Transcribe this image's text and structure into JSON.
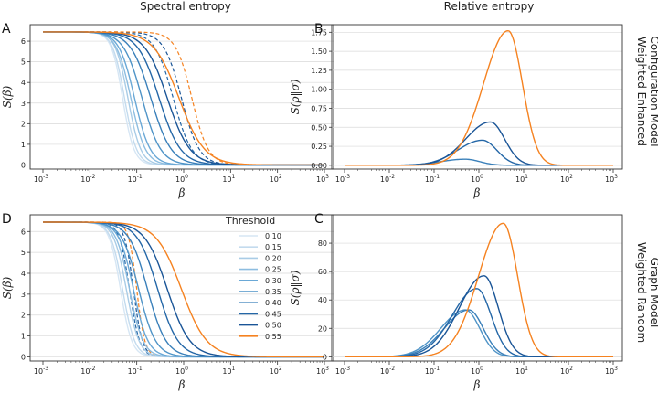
{
  "figure": {
    "column_titles": [
      "Spectral entropy",
      "Relative entropy"
    ],
    "row_labels": [
      [
        "Weighted Enhanced",
        "Configuration Model"
      ],
      [
        "Weighted Random",
        "Graph Model"
      ]
    ]
  },
  "legend": {
    "title": "Threshold",
    "items": [
      "0.10",
      "0.15",
      "0.20",
      "0.25",
      "0.30",
      "0.35",
      "0.40",
      "0.45",
      "0.50",
      "0.55"
    ]
  },
  "colors": {
    "series": [
      "#d6e6f4",
      "#c3dbee",
      "#a9cce6",
      "#8dbde0",
      "#6aa8d6",
      "#4f94c7",
      "#3a80ba",
      "#2467a7",
      "#1a5597",
      "#f58220"
    ],
    "grid": "#d9d9d9",
    "axis": "#333333"
  },
  "chart_data": [
    {
      "panel": "A",
      "type": "line",
      "title": "Spectral entropy",
      "xlabel": "β",
      "ylabel": "S(β)",
      "xscale": "log",
      "xlim": [
        0.001,
        1000
      ],
      "ylim": [
        -0.2,
        6.8
      ],
      "xticks": [
        "10",
        "10",
        "10",
        "10",
        "10",
        "10",
        "10"
      ],
      "xtick_exponents": [
        "-3",
        "-2",
        "-1",
        "0",
        "1",
        "2",
        "3"
      ],
      "yticks": [
        "0",
        "1",
        "2",
        "3",
        "4",
        "5",
        "6"
      ],
      "max_value": 6.45,
      "series": [
        {
          "name": "0.10",
          "midpoint_beta": 0.05,
          "slope": 3.6
        },
        {
          "name": "0.15",
          "midpoint_beta": 0.055,
          "slope": 3.4
        },
        {
          "name": "0.20",
          "midpoint_beta": 0.065,
          "slope": 3.2
        },
        {
          "name": "0.25",
          "midpoint_beta": 0.075,
          "slope": 2.8
        },
        {
          "name": "0.30",
          "midpoint_beta": 0.09,
          "slope": 2.6
        },
        {
          "name": "0.35",
          "midpoint_beta": 0.13,
          "slope": 2.2
        },
        {
          "name": "0.40",
          "midpoint_beta": 0.2,
          "slope": 2.0
        },
        {
          "name": "0.45",
          "midpoint_beta": 0.3,
          "slope": 1.9
        },
        {
          "name": "0.50",
          "midpoint_beta": 0.45,
          "slope": 1.8
        },
        {
          "name": "0.55",
          "midpoint_beta": 0.8,
          "slope": 1.6
        }
      ],
      "dashed_series": [
        {
          "name": "0.45 (dashed)",
          "midpoint_beta": 0.6,
          "slope": 2.2
        },
        {
          "name": "0.50 (dashed)",
          "midpoint_beta": 0.9,
          "slope": 2.3
        },
        {
          "name": "0.55 (dashed)",
          "midpoint_beta": 1.5,
          "slope": 2.5
        }
      ]
    },
    {
      "panel": "B",
      "type": "line",
      "title": "Relative entropy",
      "xlabel": "β",
      "ylabel": "S(ρ‖σ)",
      "xscale": "log",
      "xlim": [
        0.001,
        1000
      ],
      "ylim": [
        -0.05,
        1.85
      ],
      "xticks": [
        "10",
        "10",
        "10",
        "10",
        "10",
        "10",
        "10"
      ],
      "xtick_exponents": [
        "-3",
        "-2",
        "-1",
        "0",
        "1",
        "2",
        "3"
      ],
      "yticks": [
        "0.00",
        "0.25",
        "0.50",
        "0.75",
        "1.00",
        "1.25",
        "1.50",
        "1.75"
      ],
      "series": [
        {
          "name": "0.40",
          "peak_beta": 0.5,
          "peak_value": 0.08
        },
        {
          "name": "0.45",
          "peak_beta": 1.2,
          "peak_value": 0.33
        },
        {
          "name": "0.50",
          "peak_beta": 1.8,
          "peak_value": 0.57
        },
        {
          "name": "0.55",
          "peak_beta": 4.5,
          "peak_value": 1.77
        }
      ]
    },
    {
      "panel": "D",
      "type": "line",
      "title": "",
      "xlabel": "β",
      "ylabel": "S(β)",
      "xscale": "log",
      "xlim": [
        0.001,
        1000
      ],
      "ylim": [
        -0.2,
        6.8
      ],
      "xticks": [
        "10",
        "10",
        "10",
        "10",
        "10",
        "10",
        "10"
      ],
      "xtick_exponents": [
        "-3",
        "-2",
        "-1",
        "0",
        "1",
        "2",
        "3"
      ],
      "yticks": [
        "0",
        "1",
        "2",
        "3",
        "4",
        "5",
        "6"
      ],
      "max_value": 6.45,
      "series": [
        {
          "name": "0.10",
          "midpoint_beta": 0.045,
          "slope": 3.6
        },
        {
          "name": "0.15",
          "midpoint_beta": 0.05,
          "slope": 3.4
        },
        {
          "name": "0.20",
          "midpoint_beta": 0.06,
          "slope": 3.2
        },
        {
          "name": "0.25",
          "midpoint_beta": 0.07,
          "slope": 3.0
        },
        {
          "name": "0.30",
          "midpoint_beta": 0.085,
          "slope": 2.8
        },
        {
          "name": "0.35",
          "midpoint_beta": 0.11,
          "slope": 2.4
        },
        {
          "name": "0.40",
          "midpoint_beta": 0.17,
          "slope": 2.2
        },
        {
          "name": "0.45",
          "midpoint_beta": 0.28,
          "slope": 2.0
        },
        {
          "name": "0.50",
          "midpoint_beta": 0.45,
          "slope": 1.8
        },
        {
          "name": "0.55",
          "midpoint_beta": 0.9,
          "slope": 1.6
        }
      ],
      "dashed_series": [
        {
          "name": "0.45 (dashed)",
          "midpoint_beta": 0.07,
          "slope": 4.0
        },
        {
          "name": "0.50 (dashed)",
          "midpoint_beta": 0.085,
          "slope": 4.5
        },
        {
          "name": "0.55 (dashed)",
          "midpoint_beta": 0.1,
          "slope": 5.0
        }
      ]
    },
    {
      "panel": "C",
      "type": "line",
      "title": "",
      "xlabel": "β",
      "ylabel": "S(ρ‖σ)",
      "xscale": "log",
      "xlim": [
        0.001,
        1000
      ],
      "ylim": [
        -3,
        100
      ],
      "xticks": [
        "10",
        "10",
        "10",
        "10",
        "10",
        "10",
        "10"
      ],
      "xtick_exponents": [
        "-3",
        "-2",
        "-1",
        "0",
        "1",
        "2",
        "3"
      ],
      "yticks": [
        "0",
        "20",
        "40",
        "60",
        "80"
      ],
      "series": [
        {
          "name": "0.35",
          "peak_beta": 0.5,
          "peak_value": 33
        },
        {
          "name": "0.40",
          "peak_beta": 0.6,
          "peak_value": 33
        },
        {
          "name": "0.45",
          "peak_beta": 0.9,
          "peak_value": 48
        },
        {
          "name": "0.50",
          "peak_beta": 1.3,
          "peak_value": 57
        },
        {
          "name": "0.55",
          "peak_beta": 3.5,
          "peak_value": 94
        }
      ]
    }
  ]
}
